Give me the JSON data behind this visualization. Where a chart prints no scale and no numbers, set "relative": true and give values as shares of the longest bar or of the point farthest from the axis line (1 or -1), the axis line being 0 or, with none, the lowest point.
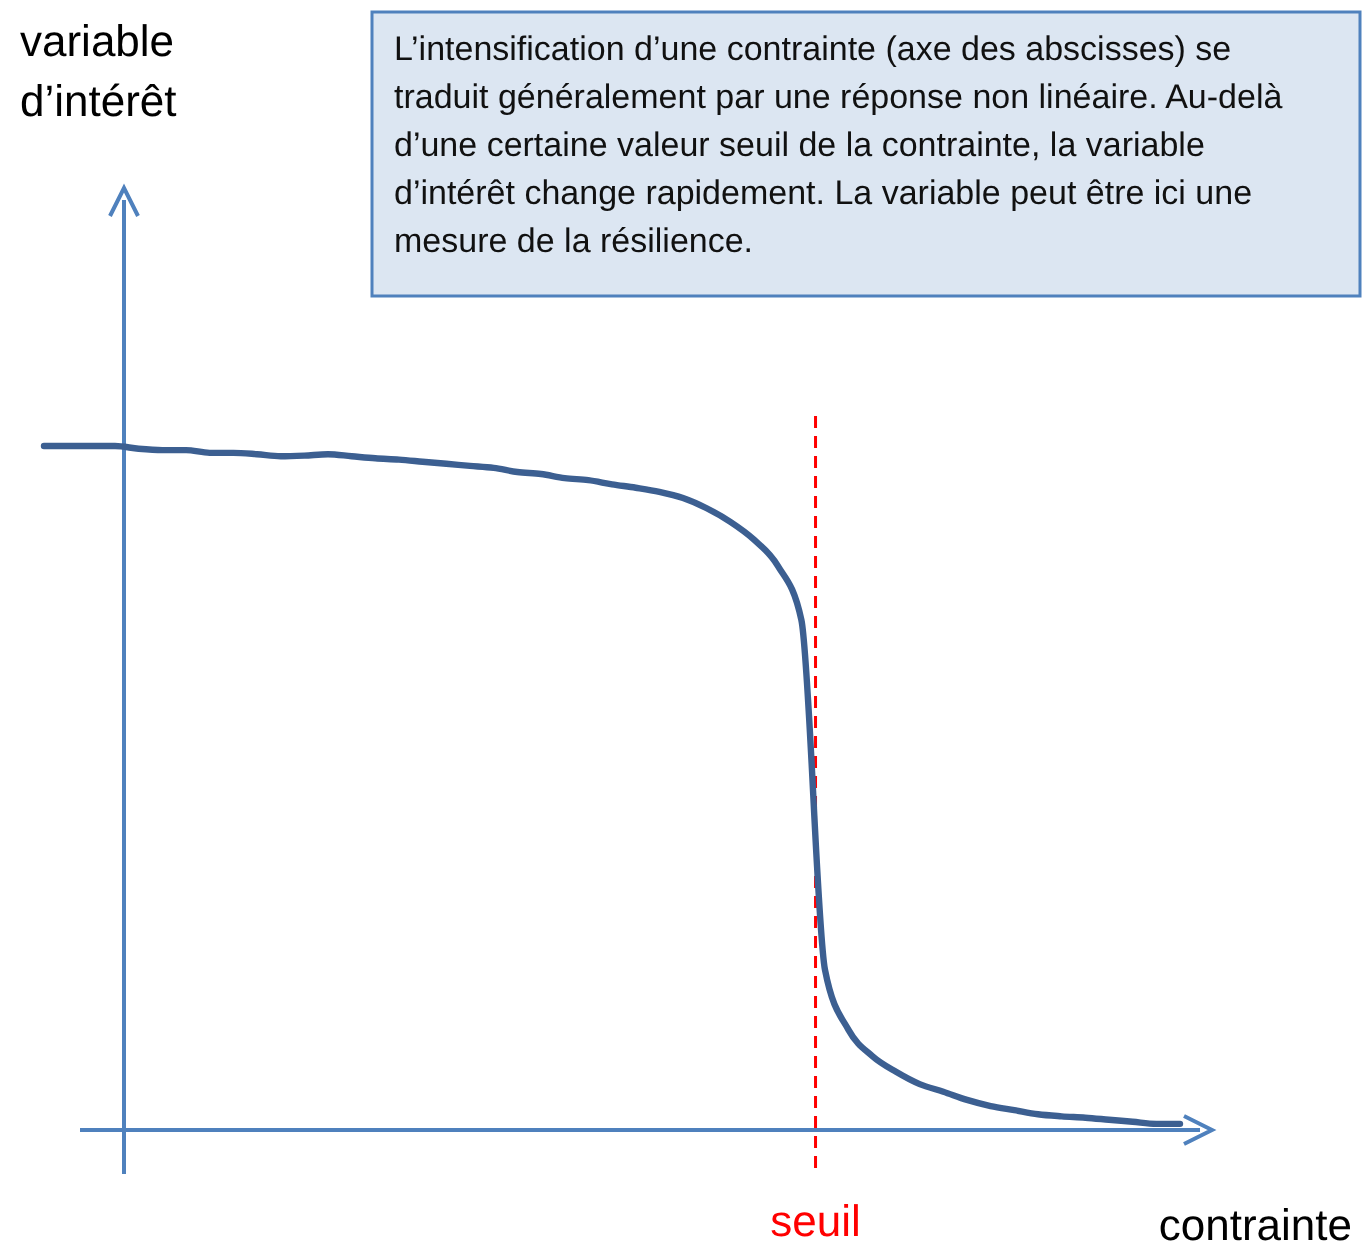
{
  "chart_data": {
    "type": "line",
    "relative": true,
    "xlabel": "contrainte",
    "annotations": [
      "L’intensification d’une contrainte (axe des abscisses) se traduit généralement par une réponse non linéaire. Au-delà d’une certaine valeur seuil de la contrainte, la variable d’intérêt change rapidement. La variable peut être ici une mesure de la résilience.",
      "variable\nd’intérêt",
      "seuil"
    ],
    "categories": [
      null,
      null,
      null,
      null,
      null,
      null,
      null,
      null,
      null,
      null,
      null,
      null,
      null,
      null,
      null,
      null,
      null,
      null,
      null,
      null,
      null,
      null,
      null,
      null,
      null,
      null,
      null,
      null,
      null,
      null,
      null,
      null,
      null,
      null,
      null,
      null,
      null,
      null,
      null,
      null,
      null,
      null,
      null,
      null,
      null,
      null,
      null,
      null,
      null
    ],
    "series": [
      {
        "color": "#3c5f91",
        "values": [
          1,
          1,
          1,
          1,
          0.996,
          0.994,
          0.994,
          0.99,
          0.99,
          0.988,
          0.985,
          0.986,
          0.988,
          0.985,
          0.982,
          0.98,
          0.977,
          0.974,
          0.971,
          0.968,
          0.962,
          0.959,
          0.953,
          0.95,
          0.944,
          0.939,
          0.933,
          0.924,
          0.909,
          0.889,
          0.863,
          0.825,
          0.746,
          0.234,
          0.146,
          0.108,
          0.085,
          0.067,
          0.056,
          0.044,
          0.035,
          0.029,
          0.023,
          0.02,
          0.018,
          0.015,
          0.012,
          0.009,
          0.009
        ]
      }
    ],
    "marker": "none",
    "line_style": "solid"
  }
}
